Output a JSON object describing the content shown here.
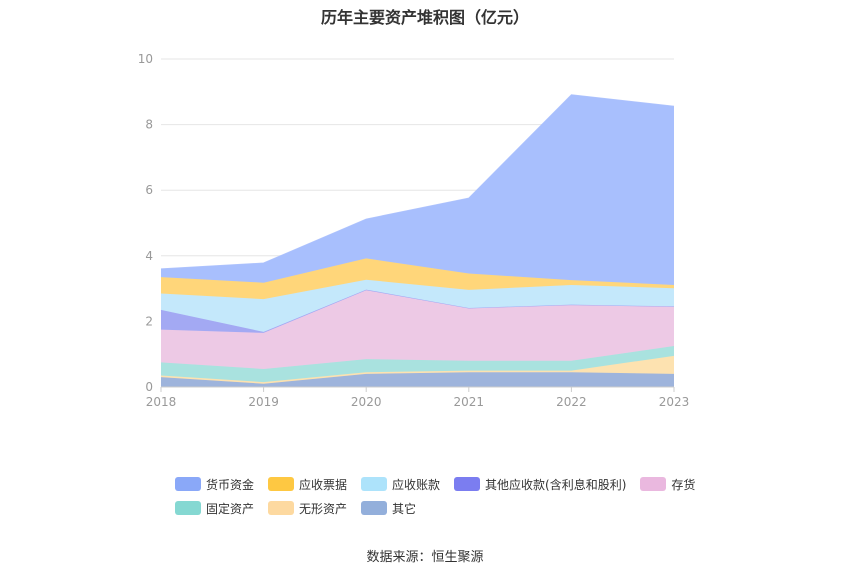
{
  "chart_data": {
    "type": "area",
    "title": "历年主要资产堆积图（亿元）",
    "x": [
      "2018",
      "2019",
      "2020",
      "2021",
      "2022",
      "2023"
    ],
    "ylim": [
      0,
      10
    ],
    "yticks": [
      0,
      2,
      4,
      6,
      8,
      10
    ],
    "stacked": true,
    "grid": true,
    "legend_position": "bottom",
    "series": [
      {
        "name": "其它",
        "color": "#9eb4dc",
        "values": [
          0.3,
          0.1,
          0.4,
          0.45,
          0.45,
          0.4
        ]
      },
      {
        "name": "无形资产",
        "color": "#fde2b0",
        "values": [
          0.05,
          0.05,
          0.05,
          0.05,
          0.05,
          0.55
        ]
      },
      {
        "name": "固定资产",
        "color": "#a9e2df",
        "values": [
          0.4,
          0.4,
          0.4,
          0.3,
          0.3,
          0.3
        ]
      },
      {
        "name": "存货",
        "color": "#edc9e5",
        "values": [
          1.0,
          1.1,
          2.1,
          1.6,
          1.7,
          1.2
        ]
      },
      {
        "name": "其他应收款(含利息和股利)",
        "color": "#a3a9f3",
        "values": [
          0.6,
          0.03,
          0.02,
          0.01,
          0.01,
          0.01
        ]
      },
      {
        "name": "应收账款",
        "color": "#c4e8fb",
        "values": [
          0.5,
          1.0,
          0.3,
          0.55,
          0.6,
          0.55
        ]
      },
      {
        "name": "应收票据",
        "color": "#ffd67a",
        "values": [
          0.5,
          0.5,
          0.65,
          0.5,
          0.15,
          0.1
        ]
      },
      {
        "name": "货币资金",
        "color": "#a8bffd",
        "values": [
          0.25,
          0.6,
          1.2,
          2.3,
          5.65,
          5.45
        ]
      }
    ]
  },
  "legend": [
    {
      "label": "货币资金",
      "color": "#8aa8f8"
    },
    {
      "label": "应收票据",
      "color": "#fec842"
    },
    {
      "label": "应收账款",
      "color": "#ade3fb"
    },
    {
      "label": "其他应收款(含利息和股利)",
      "color": "#7b7df0"
    },
    {
      "label": "存货",
      "color": "#eab8df"
    },
    {
      "label": "固定资产",
      "color": "#85d8d2"
    },
    {
      "label": "无形资产",
      "color": "#fdd9a0"
    },
    {
      "label": "其它",
      "color": "#93afdb"
    }
  ],
  "source_note": "数据来源：恒生聚源"
}
